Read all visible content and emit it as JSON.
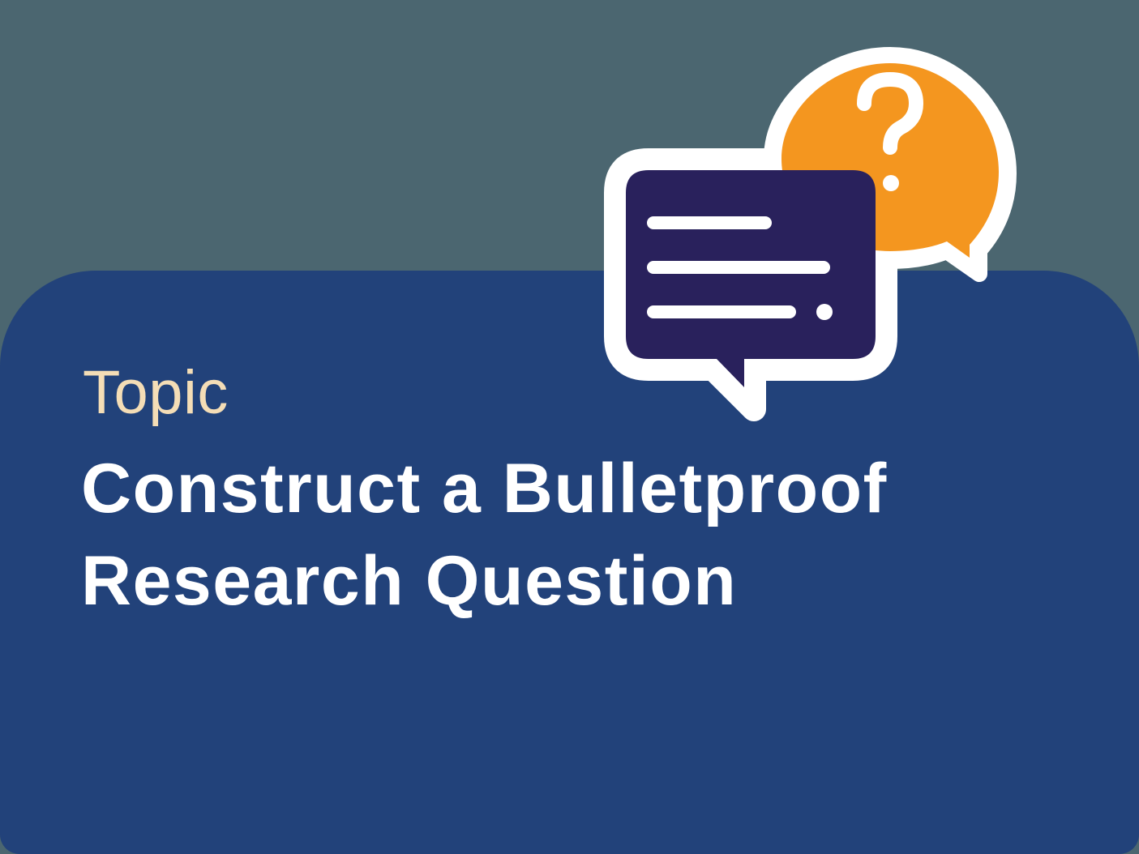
{
  "topic_label": "Topic",
  "title": {
    "line1": "Construct a Bulletproof",
    "line2": "Research Question"
  },
  "question_bubble": {
    "glyph": "?",
    "icon": "question-icon"
  },
  "colors": {
    "background": "#4b6670",
    "card": "#22427a",
    "topic_label": "#f4ddb6",
    "title": "#ffffff",
    "document_bubble": "#29215c",
    "question_bubble": "#f4961f",
    "outline": "#ffffff"
  }
}
